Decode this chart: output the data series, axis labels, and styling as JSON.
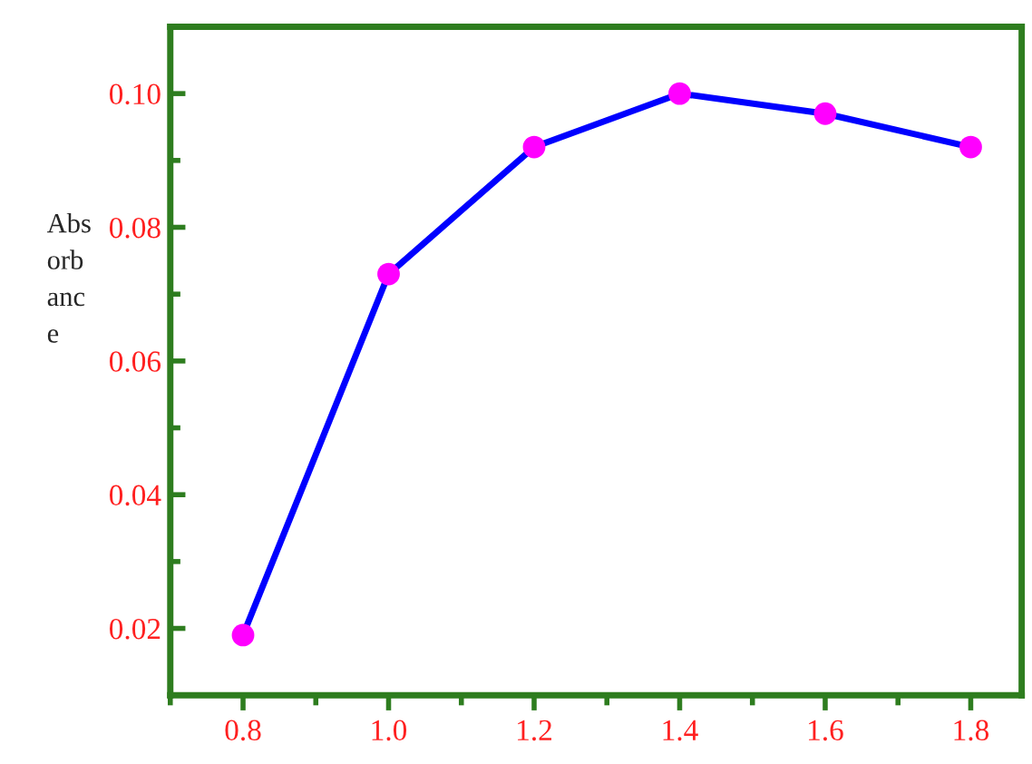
{
  "chart_data": {
    "type": "line",
    "ylabel": "Abs\norb\nanc\ne",
    "x": [
      0.8,
      1.0,
      1.2,
      1.4,
      1.6,
      1.8
    ],
    "series": [
      {
        "color": "#0000ff",
        "colors": [
          "#ff00ff",
          "#ff00ff",
          "#ff00ff",
          "#ff00ff",
          "#ff00ff",
          "#ff00ff"
        ],
        "values": [
          0.019,
          0.073,
          0.092,
          0.1,
          0.097,
          0.092
        ]
      }
    ],
    "marker": "circle",
    "line_style": "solid",
    "xlim": [
      0.7,
      1.87
    ],
    "ylim": [
      0.01,
      0.11
    ],
    "xticks": [
      {
        "value": 0.8,
        "label": "0.8"
      },
      {
        "value": 1.0,
        "label": "1.0"
      },
      {
        "value": 1.2,
        "label": "1.2"
      },
      {
        "value": 1.4,
        "label": "1.4"
      },
      {
        "value": 1.6,
        "label": "1.6"
      },
      {
        "value": 1.8,
        "label": "1.8"
      }
    ],
    "yticks": [
      {
        "value": 0.02,
        "label": "0.02"
      },
      {
        "value": 0.04,
        "label": "0.04"
      },
      {
        "value": 0.06,
        "label": "0.06"
      },
      {
        "value": 0.08,
        "label": "0.08"
      },
      {
        "value": 0.1,
        "label": "0.10"
      }
    ],
    "grid": false,
    "legend": false
  }
}
